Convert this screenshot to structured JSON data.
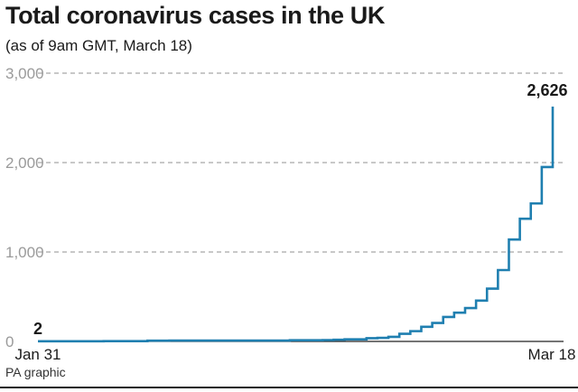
{
  "title": "Total coronavirus cases in the UK",
  "subtitle": "(as of 9am GMT, March 18)",
  "source": "PA graphic",
  "colors": {
    "line": "#1f7fb0",
    "grid": "#a8a8a8",
    "axis": "#222222",
    "tick_text": "#9a9a9a"
  },
  "chart_data": {
    "type": "line",
    "step": true,
    "grid": true,
    "ylim": [
      0,
      3000
    ],
    "yticks": [
      0,
      1000,
      2000,
      3000
    ],
    "ytick_labels": [
      "0",
      "1,000",
      "2,000",
      "3,000"
    ],
    "xtick_labels": [
      "Jan 31",
      "Mar 18"
    ],
    "start_label": "2",
    "end_label": "2,626",
    "x": [
      "Jan 31",
      "Feb 1",
      "Feb 2",
      "Feb 3",
      "Feb 4",
      "Feb 5",
      "Feb 6",
      "Feb 7",
      "Feb 8",
      "Feb 9",
      "Feb 10",
      "Feb 11",
      "Feb 12",
      "Feb 13",
      "Feb 14",
      "Feb 15",
      "Feb 16",
      "Feb 17",
      "Feb 18",
      "Feb 19",
      "Feb 20",
      "Feb 21",
      "Feb 22",
      "Feb 23",
      "Feb 24",
      "Feb 25",
      "Feb 26",
      "Feb 27",
      "Feb 28",
      "Feb 29",
      "Mar 1",
      "Mar 2",
      "Mar 3",
      "Mar 4",
      "Mar 5",
      "Mar 6",
      "Mar 7",
      "Mar 8",
      "Mar 9",
      "Mar 10",
      "Mar 11",
      "Mar 12",
      "Mar 13",
      "Mar 14",
      "Mar 15",
      "Mar 16",
      "Mar 17",
      "Mar 18"
    ],
    "y": [
      2,
      2,
      2,
      2,
      2,
      2,
      3,
      3,
      3,
      3,
      8,
      8,
      9,
      9,
      9,
      9,
      9,
      9,
      9,
      9,
      9,
      9,
      9,
      13,
      13,
      13,
      15,
      19,
      23,
      23,
      36,
      40,
      51,
      85,
      115,
      163,
      206,
      273,
      321,
      373,
      456,
      590,
      798,
      1140,
      1372,
      1543,
      1950,
      2626
    ]
  }
}
